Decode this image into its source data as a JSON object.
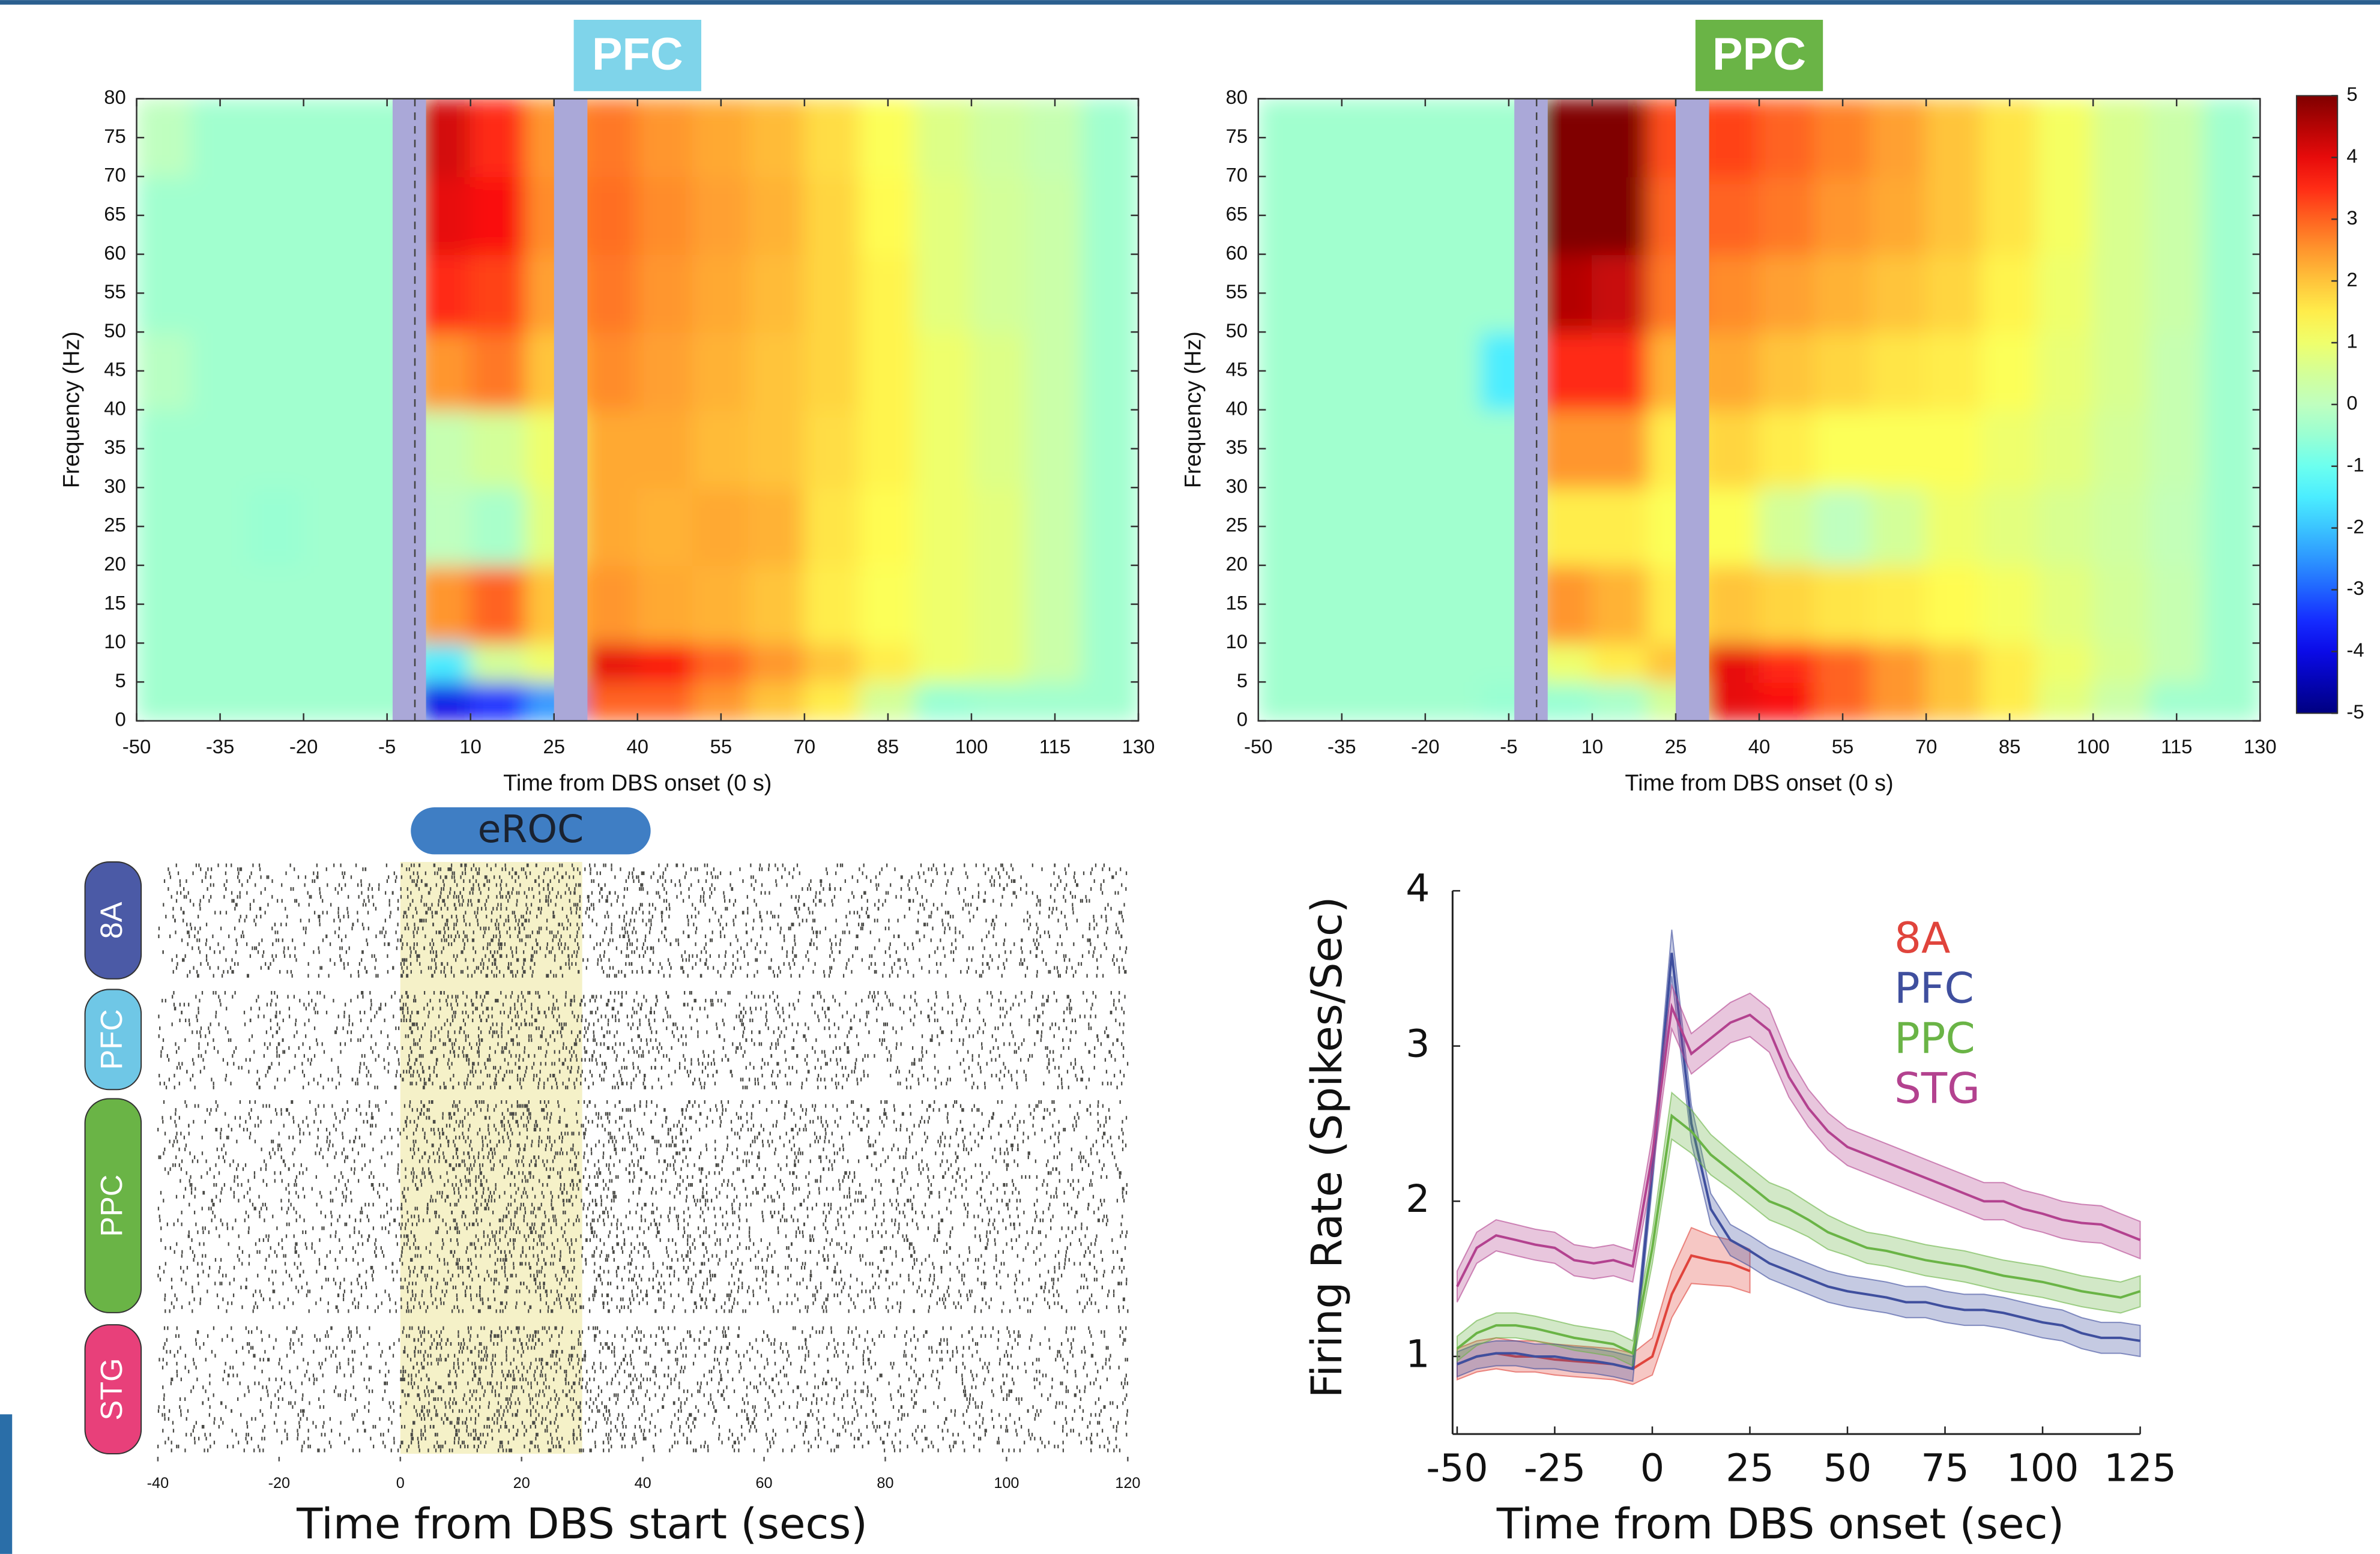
{
  "chart_data": [
    {
      "type": "heatmap",
      "title": "PFC",
      "title_color": "#7fd4ea",
      "xlabel": "Time from DBS onset (0 s)",
      "ylabel": "Frequency (Hz)",
      "xlim": [
        -50,
        130
      ],
      "ylim": [
        0,
        80
      ],
      "xticks": [
        -50,
        -35,
        -20,
        -5,
        10,
        25,
        40,
        55,
        70,
        85,
        100,
        115,
        130
      ],
      "yticks": [
        0,
        5,
        10,
        15,
        20,
        25,
        30,
        35,
        40,
        45,
        50,
        55,
        60,
        65,
        70,
        75,
        80
      ],
      "x_edges": [
        -50,
        -40,
        -30,
        -20,
        -10,
        0,
        10,
        20,
        30,
        40,
        50,
        60,
        70,
        80,
        90,
        100,
        110,
        120,
        130
      ],
      "y_edges": [
        0,
        5,
        10,
        20,
        30,
        40,
        50,
        60,
        70,
        80
      ],
      "zlim": [
        -5,
        5
      ],
      "colorbar": false,
      "z": [
        [
          -0.4,
          -0.4,
          -0.4,
          -0.4,
          -0.4,
          -4,
          -3.5,
          -2.5,
          3,
          3,
          2.5,
          2,
          1.5,
          0.5,
          -0.5,
          -0.4,
          -0.4,
          -0.4
        ],
        [
          -0.4,
          -0.4,
          -0.4,
          -0.4,
          -0.4,
          -1.5,
          0.5,
          1,
          4,
          3.8,
          3,
          2.5,
          2,
          1.5,
          1,
          0.8,
          0.3,
          -0.4
        ],
        [
          -0.4,
          -0.4,
          -0.4,
          -0.4,
          -0.4,
          2.5,
          3,
          2,
          2.5,
          2.3,
          2.2,
          2,
          1.5,
          1.2,
          1,
          0.8,
          0.3,
          -0.4
        ],
        [
          -0.4,
          -0.4,
          -0.5,
          -0.4,
          -0.4,
          0,
          -0.3,
          0.8,
          2.3,
          2.2,
          2.3,
          2.2,
          1.6,
          1.3,
          1,
          0.8,
          0.3,
          -0.4
        ],
        [
          -0.4,
          -0.4,
          -0.4,
          -0.4,
          -0.4,
          0.2,
          0.5,
          1,
          2.3,
          2.3,
          2.1,
          2,
          1.7,
          1.4,
          1,
          0.7,
          0.3,
          -0.4
        ],
        [
          -0.1,
          -0.4,
          -0.4,
          -0.4,
          -0.4,
          2.5,
          2.8,
          2,
          2.6,
          2.4,
          2.2,
          2,
          1.8,
          1.4,
          1,
          0.7,
          0.3,
          -0.4
        ],
        [
          -0.4,
          -0.4,
          -0.4,
          -0.4,
          -0.4,
          3.5,
          3.3,
          2.4,
          2.8,
          2.5,
          2.3,
          2.1,
          1.8,
          1.4,
          0.8,
          0.5,
          0.3,
          -0.4
        ],
        [
          -0.4,
          -0.4,
          -0.4,
          -0.4,
          -0.4,
          4,
          3.8,
          2.6,
          2.9,
          2.6,
          2.4,
          2.2,
          1.8,
          1.3,
          0.8,
          0.5,
          0.3,
          -0.4
        ],
        [
          0,
          -0.4,
          -0.4,
          -0.4,
          -0.4,
          4.2,
          3.5,
          2.5,
          2.8,
          2.5,
          2.3,
          2.1,
          1.7,
          1.2,
          0.7,
          0.4,
          0.2,
          -0.4
        ]
      ],
      "shaded_spans": [
        [
          -4,
          2
        ],
        [
          25,
          31
        ]
      ],
      "vlines": [
        0
      ]
    },
    {
      "type": "heatmap",
      "title": "PPC",
      "title_color": "#6ab446",
      "xlabel": "Time from DBS onset (0 s)",
      "ylabel": "Frequency (Hz)",
      "xlim": [
        -50,
        130
      ],
      "ylim": [
        0,
        80
      ],
      "xticks": [
        -50,
        -35,
        -20,
        -5,
        10,
        25,
        40,
        55,
        70,
        85,
        100,
        115,
        130
      ],
      "yticks": [
        0,
        5,
        10,
        15,
        20,
        25,
        30,
        35,
        40,
        45,
        50,
        55,
        60,
        65,
        70,
        75,
        80
      ],
      "x_edges": [
        -50,
        -40,
        -30,
        -20,
        -10,
        0,
        10,
        20,
        30,
        40,
        50,
        60,
        70,
        80,
        90,
        100,
        110,
        120,
        130
      ],
      "y_edges": [
        0,
        5,
        10,
        20,
        30,
        40,
        50,
        60,
        70,
        80
      ],
      "zlim": [
        -5,
        5
      ],
      "zticks": [
        -5,
        -4,
        -3,
        -2,
        -1,
        0,
        1,
        2,
        3,
        4,
        5
      ],
      "colorbar": true,
      "z": [
        [
          -0.4,
          -0.4,
          -0.4,
          -0.4,
          -0.5,
          -0.5,
          -0.3,
          0.5,
          4,
          3.8,
          3,
          2.5,
          2,
          1.5,
          0.8,
          0.3,
          -0.4,
          -0.4
        ],
        [
          -0.4,
          -0.4,
          -0.4,
          -0.4,
          -0.4,
          1,
          1.5,
          2,
          4,
          3.5,
          3,
          2.5,
          2,
          1.5,
          1,
          0.6,
          0.2,
          -0.4
        ],
        [
          -0.4,
          -0.4,
          -0.4,
          -0.4,
          -0.4,
          2.5,
          2.2,
          1.5,
          2,
          1.8,
          1.6,
          1.5,
          1.3,
          1.1,
          0.8,
          0.5,
          0.2,
          -0.4
        ],
        [
          -0.4,
          -0.4,
          -0.4,
          -0.4,
          -0.4,
          1.5,
          1.5,
          1.2,
          1.2,
          0.5,
          0,
          0.5,
          1,
          0.8,
          0.6,
          0.4,
          0.1,
          -0.4
        ],
        [
          -0.4,
          -0.4,
          -0.4,
          -0.4,
          -0.4,
          2.5,
          2.5,
          1.5,
          1.8,
          1.5,
          1.2,
          1.2,
          1.2,
          1,
          0.8,
          0.5,
          0.2,
          -0.4
        ],
        [
          -0.4,
          -0.4,
          -0.4,
          -0.4,
          -1.5,
          3.5,
          3.5,
          2.2,
          2.3,
          2,
          1.8,
          1.6,
          1.5,
          1.2,
          0.9,
          0.6,
          0.2,
          -0.4
        ],
        [
          -0.4,
          -0.4,
          -0.4,
          -0.4,
          -0.4,
          4.5,
          4.3,
          2.8,
          2.6,
          2.4,
          2.2,
          2,
          1.8,
          1.4,
          1,
          0.6,
          0.3,
          -0.4
        ],
        [
          -0.4,
          -0.4,
          -0.4,
          -0.4,
          -0.4,
          5,
          5,
          3,
          3,
          2.8,
          2.5,
          2.3,
          2,
          1.6,
          1.1,
          0.6,
          0.3,
          -0.4
        ],
        [
          -0.4,
          -0.4,
          -0.4,
          -0.4,
          -0.4,
          5,
          5,
          3.2,
          3.3,
          3,
          2.7,
          2.4,
          2,
          1.6,
          1.1,
          0.6,
          0.3,
          -0.4
        ]
      ],
      "shaded_spans": [
        [
          -4,
          2
        ],
        [
          25,
          31
        ]
      ],
      "vlines": [
        0
      ]
    },
    {
      "type": "raster",
      "xlabel": "Time from DBS start (secs)",
      "xlim": [
        -40,
        120
      ],
      "xticks": [
        -40,
        -20,
        0,
        20,
        40,
        60,
        80,
        100,
        120
      ],
      "highlight": {
        "span": [
          0,
          30
        ],
        "label": "eROC"
      },
      "bins": [
        -40,
        -30,
        -20,
        -10,
        0,
        10,
        20,
        30,
        40,
        50,
        60,
        70,
        80,
        90,
        100,
        110,
        120
      ],
      "groups": [
        {
          "name": "8A",
          "color": "#4b5aa6",
          "density": [
            0.35,
            0.35,
            0.3,
            0.35,
            0.8,
            0.8,
            0.75,
            0.55,
            0.45,
            0.4,
            0.4,
            0.35,
            0.35,
            0.35,
            0.35,
            0.35
          ]
        },
        {
          "name": "PFC",
          "color": "#6fc7e6",
          "density": [
            0.3,
            0.3,
            0.3,
            0.3,
            0.75,
            0.75,
            0.7,
            0.6,
            0.45,
            0.4,
            0.4,
            0.35,
            0.35,
            0.35,
            0.35,
            0.35
          ]
        },
        {
          "name": "PPC",
          "color": "#6ab446",
          "density": [
            0.3,
            0.3,
            0.3,
            0.35,
            0.7,
            0.7,
            0.7,
            0.6,
            0.5,
            0.45,
            0.4,
            0.4,
            0.4,
            0.35,
            0.35,
            0.35
          ]
        },
        {
          "name": "STG",
          "color": "#e8407a",
          "density": [
            0.3,
            0.3,
            0.3,
            0.3,
            0.8,
            0.8,
            0.8,
            0.55,
            0.45,
            0.4,
            0.4,
            0.4,
            0.35,
            0.35,
            0.35,
            0.35
          ]
        }
      ]
    },
    {
      "type": "line",
      "xlabel": "Time from DBS onset (sec)",
      "ylabel": "Firing Rate (Spikes/Sec)",
      "xlim": [
        -50,
        125
      ],
      "ylim": [
        0.5,
        4
      ],
      "xticks": [
        -50,
        -25,
        0,
        25,
        50,
        75,
        100,
        125
      ],
      "yticks": [
        1,
        2,
        3,
        4
      ],
      "x": [
        -50,
        -45,
        -40,
        -35,
        -30,
        -25,
        -20,
        -15,
        -10,
        -5,
        0,
        5,
        10,
        15,
        20,
        25,
        30,
        35,
        40,
        45,
        50,
        55,
        60,
        65,
        70,
        75,
        80,
        85,
        90,
        95,
        100,
        105,
        110,
        115,
        120,
        125
      ],
      "series": [
        {
          "name": "8A",
          "color": "#e0443c",
          "values": [
            0.95,
            1.0,
            1.02,
            1.0,
            1.0,
            0.98,
            0.97,
            0.96,
            0.95,
            0.92,
            1.0,
            1.4,
            1.65,
            1.62,
            1.6,
            1.55,
            null,
            null,
            null,
            null,
            null,
            null,
            null,
            null,
            null,
            null,
            null,
            null,
            null,
            null,
            null,
            null,
            null,
            null,
            null,
            null
          ],
          "errors": [
            0.1,
            0.1,
            0.1,
            0.1,
            0.1,
            0.1,
            0.1,
            0.1,
            0.1,
            0.1,
            0.12,
            0.15,
            0.18,
            0.16,
            0.15,
            0.14,
            null,
            null,
            null,
            null,
            null,
            null,
            null,
            null,
            null,
            null,
            null,
            null,
            null,
            null,
            null,
            null,
            null,
            null,
            null,
            null
          ]
        },
        {
          "name": "PFC",
          "color": "#3f4f9e",
          "values": [
            0.95,
            1.0,
            1.02,
            1.02,
            1.0,
            1.0,
            0.98,
            0.97,
            0.95,
            0.92,
            2.2,
            3.6,
            2.5,
            1.95,
            1.75,
            1.68,
            1.6,
            1.55,
            1.5,
            1.45,
            1.42,
            1.4,
            1.38,
            1.35,
            1.35,
            1.32,
            1.3,
            1.3,
            1.28,
            1.25,
            1.22,
            1.2,
            1.15,
            1.12,
            1.12,
            1.1
          ],
          "errors": [
            0.08,
            0.08,
            0.08,
            0.08,
            0.08,
            0.08,
            0.08,
            0.08,
            0.08,
            0.08,
            0.1,
            0.15,
            0.12,
            0.1,
            0.1,
            0.1,
            0.1,
            0.1,
            0.1,
            0.1,
            0.1,
            0.1,
            0.1,
            0.1,
            0.1,
            0.1,
            0.1,
            0.1,
            0.1,
            0.1,
            0.1,
            0.1,
            0.1,
            0.1,
            0.1,
            0.1
          ]
        },
        {
          "name": "PPC",
          "color": "#6ab446",
          "values": [
            1.05,
            1.15,
            1.2,
            1.2,
            1.18,
            1.15,
            1.12,
            1.1,
            1.08,
            1.02,
            1.7,
            2.55,
            2.45,
            2.3,
            2.2,
            2.1,
            2.0,
            1.95,
            1.88,
            1.8,
            1.75,
            1.7,
            1.68,
            1.65,
            1.62,
            1.6,
            1.58,
            1.55,
            1.52,
            1.5,
            1.48,
            1.45,
            1.42,
            1.4,
            1.38,
            1.42
          ],
          "errors": [
            0.08,
            0.08,
            0.08,
            0.08,
            0.08,
            0.08,
            0.08,
            0.08,
            0.08,
            0.08,
            0.1,
            0.15,
            0.14,
            0.13,
            0.12,
            0.12,
            0.12,
            0.12,
            0.11,
            0.11,
            0.1,
            0.1,
            0.1,
            0.1,
            0.1,
            0.1,
            0.1,
            0.1,
            0.1,
            0.1,
            0.1,
            0.1,
            0.1,
            0.1,
            0.1,
            0.1
          ]
        },
        {
          "name": "STG",
          "color": "#b3428f",
          "values": [
            1.45,
            1.7,
            1.78,
            1.75,
            1.72,
            1.7,
            1.62,
            1.6,
            1.62,
            1.58,
            2.3,
            3.25,
            2.95,
            3.05,
            3.15,
            3.2,
            3.1,
            2.8,
            2.6,
            2.45,
            2.35,
            2.3,
            2.25,
            2.2,
            2.15,
            2.1,
            2.05,
            2.0,
            2.0,
            1.95,
            1.92,
            1.88,
            1.86,
            1.85,
            1.8,
            1.75
          ],
          "errors": [
            0.1,
            0.1,
            0.1,
            0.1,
            0.1,
            0.1,
            0.1,
            0.1,
            0.1,
            0.1,
            0.12,
            0.14,
            0.13,
            0.13,
            0.13,
            0.14,
            0.14,
            0.13,
            0.12,
            0.12,
            0.12,
            0.12,
            0.12,
            0.12,
            0.12,
            0.12,
            0.12,
            0.12,
            0.12,
            0.12,
            0.12,
            0.12,
            0.12,
            0.12,
            0.12,
            0.12
          ]
        }
      ]
    }
  ]
}
